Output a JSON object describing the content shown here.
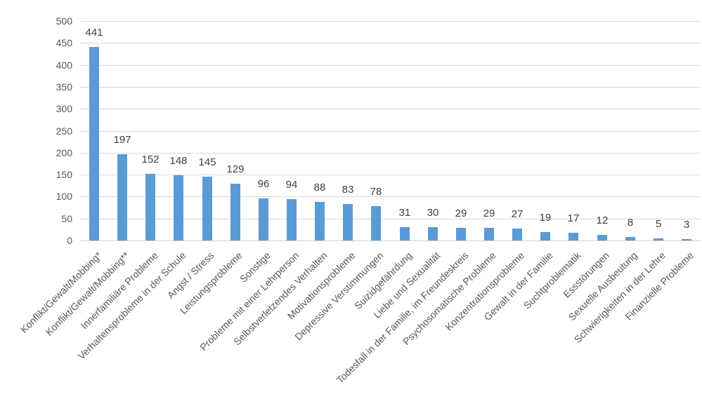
{
  "chart_data": {
    "type": "bar",
    "title": "",
    "xlabel": "",
    "ylabel": "",
    "categories": [
      "Konflikt/Gewalt/Mobbing*",
      "Konflikt/Gewalt/Mobbing**",
      "Innerfamiliäre Probleme",
      "Verhaltensprobleme in der Schule",
      "Angst / Stress",
      "Leistungsprobleme",
      "Sonstige",
      "Probleme mit einer Lehrperson",
      "Selbstverletzendes Verhalten",
      "Motivationsprobleme",
      "Depressive Verstimmungen",
      "Suizidgefährdung",
      "Liebe und Sexualität",
      "Todesfall in der Familie, im Freundeskreis",
      "Psychosomatische Probleme",
      "Konzentrationsprobleme",
      "Gewalt in der Familie",
      "Suchtproblematik",
      "Essstörungen",
      "Sexuelle Ausbeutung",
      "Schwierigkeiten in der Lehre",
      "Finanzielle Probleme"
    ],
    "values": [
      441,
      197,
      152,
      148,
      145,
      129,
      96,
      94,
      88,
      83,
      78,
      31,
      30,
      29,
      29,
      27,
      19,
      17,
      12,
      8,
      5,
      3
    ],
    "ylim": [
      0,
      500
    ],
    "yticks": [
      0,
      50,
      100,
      150,
      200,
      250,
      300,
      350,
      400,
      450,
      500
    ],
    "grid": true,
    "legend": false,
    "data_labels": true,
    "colors": {
      "bar": "#5B9BD5",
      "gridline": "#D9D9D9",
      "axis_line": "#D0D0D0",
      "tick_label": "#595959",
      "category_label": "#595959",
      "data_label": "#404040",
      "background": "#FFFFFF"
    }
  }
}
